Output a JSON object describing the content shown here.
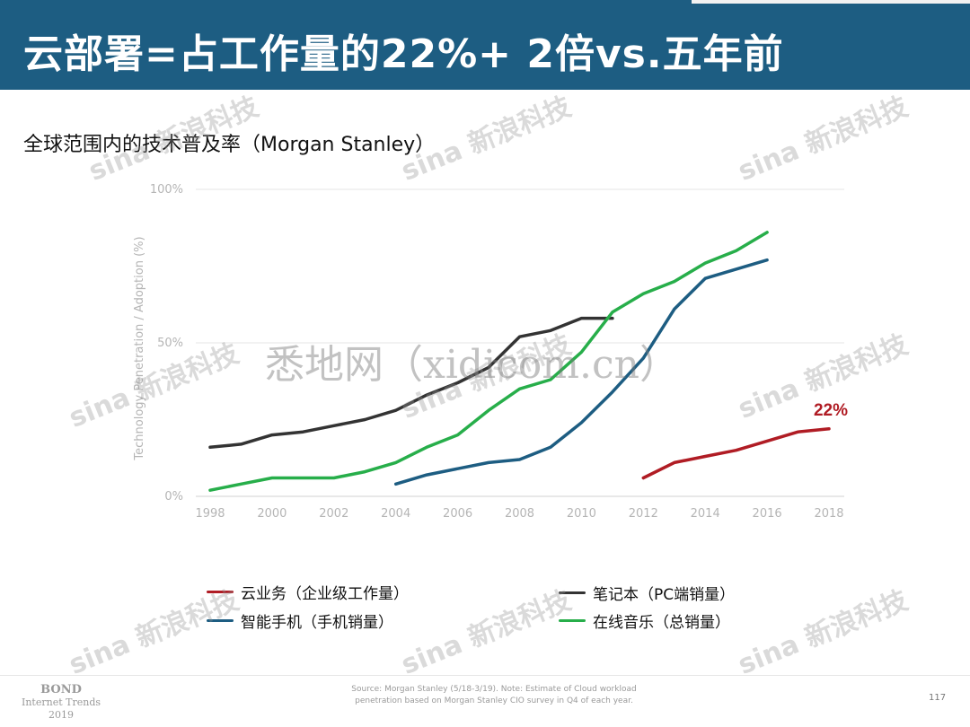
{
  "header": {
    "title": "云部署=占工作量的22%+ 2倍vs.五年前",
    "subtitle": "全球范围内的技术普及率（Morgan Stanley）"
  },
  "chart_data": {
    "type": "line",
    "ylabel": "Technology Penetration / Adoption (%)",
    "xlim": [
      1998,
      2018
    ],
    "ylim": [
      0,
      100
    ],
    "x_ticks": [
      "1998",
      "2000",
      "2002",
      "2004",
      "2006",
      "2008",
      "2010",
      "2012",
      "2014",
      "2016",
      "2018"
    ],
    "y_ticks": [
      "0%",
      "50%",
      "100%"
    ],
    "grid": true,
    "annotation": {
      "text": "22%",
      "color": "#b01c24"
    },
    "series": [
      {
        "name": "云业务（企业级工作量）",
        "color": "#b01c24",
        "x": [
          2012,
          2013,
          2014,
          2015,
          2016,
          2017,
          2018
        ],
        "y": [
          6,
          11,
          13,
          15,
          18,
          21,
          22
        ]
      },
      {
        "name": "笔记本（PC端销量）",
        "color": "#333333",
        "x": [
          1998,
          1999,
          2000,
          2001,
          2002,
          2003,
          2004,
          2005,
          2006,
          2007,
          2008,
          2009,
          2010,
          2011
        ],
        "y": [
          16,
          17,
          20,
          21,
          23,
          25,
          28,
          33,
          37,
          42,
          52,
          54,
          58,
          58
        ]
      },
      {
        "name": "智能手机（手机销量）",
        "color": "#1d5d82",
        "x": [
          2004,
          2005,
          2006,
          2007,
          2008,
          2009,
          2010,
          2011,
          2012,
          2013,
          2014,
          2015,
          2016
        ],
        "y": [
          4,
          7,
          9,
          11,
          12,
          16,
          24,
          34,
          45,
          61,
          71,
          74,
          77
        ]
      },
      {
        "name": "在线音乐（总销量）",
        "color": "#27ae4a",
        "x": [
          1998,
          1999,
          2000,
          2001,
          2002,
          2003,
          2004,
          2005,
          2006,
          2007,
          2008,
          2009,
          2010,
          2011,
          2012,
          2013,
          2014,
          2015,
          2016
        ],
        "y": [
          2,
          4,
          6,
          6,
          6,
          8,
          11,
          16,
          20,
          28,
          35,
          38,
          47,
          60,
          66,
          70,
          76,
          80,
          86
        ]
      }
    ]
  },
  "legend": {
    "cloud": "云业务（企业级工作量）",
    "laptop": "笔记本（PC端销量）",
    "smartphone": "智能手机（手机销量）",
    "music": "在线音乐（总销量）"
  },
  "footer": {
    "source_line1": "Source: Morgan Stanley (5/18-3/19).  Note: Estimate of Cloud workload",
    "source_line2": "penetration based on Morgan Stanley CIO survey in Q4 of each year.",
    "page": "117",
    "bond_1": "BOND",
    "bond_2": "Internet Trends",
    "bond_3": "2019"
  },
  "watermark": {
    "brand": "sina 新浪科技",
    "site": "悉地网（xidicom.cn）"
  },
  "colors": {
    "header_bg": "#1d5d82",
    "cloud": "#b01c24",
    "laptop": "#333333",
    "smartphone": "#1d5d82",
    "music": "#27ae4a"
  }
}
